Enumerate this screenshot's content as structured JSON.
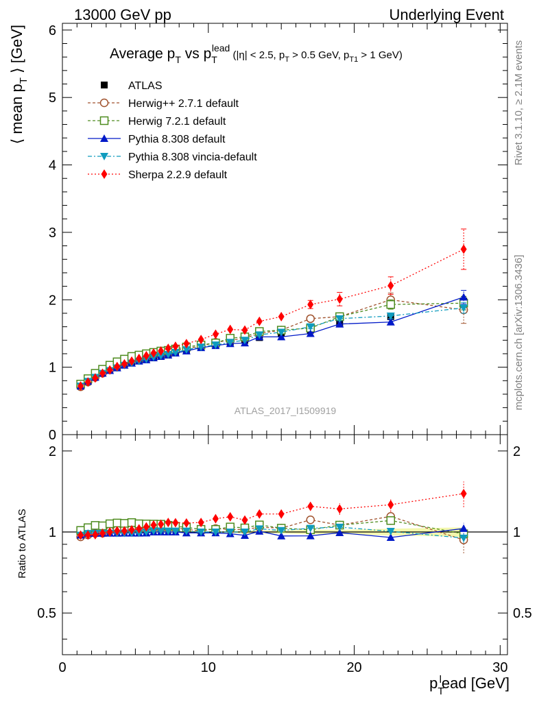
{
  "header": {
    "left": "13000 GeV pp",
    "right": "Underlying Event"
  },
  "side_labels": {
    "rivet": "Rivet 3.1.10, ≥ 2.1M events",
    "mcplots": "mcplots.cern.ch [arXiv:1306.3436]"
  },
  "watermark": "ATLAS_2017_I1509919",
  "chart_data": {
    "type": "line",
    "title_parts": {
      "main1": "Average p",
      "sub1": "T",
      "main2": " vs p",
      "sub2": "T",
      "sup2": "lead",
      "cond1": " (|η| < 2.5, p",
      "cond_sub1": "T",
      "cond2": " > 0.5 GeV, p",
      "cond_sub2": "T1",
      "cond3": " > 1 GeV)"
    },
    "ylabel_parts": {
      "a": "⟨ mean p",
      "sub": "T",
      "b": " ⟩ [GeV]"
    },
    "xlabel_parts": {
      "a": "p",
      "sub": "T",
      "sup": "l",
      "b": "ead [GeV]"
    },
    "ratio_ylabel": "Ratio to ATLAS",
    "xlim": [
      0,
      30.5
    ],
    "ylim": [
      0,
      6.1
    ],
    "ratio_ylim": [
      0.35,
      2.3
    ],
    "x_ticks": [
      "0",
      "10",
      "20",
      "30"
    ],
    "y_ticks": [
      "0",
      "1",
      "2",
      "3",
      "4",
      "5",
      "6"
    ],
    "ratio_ticks": [
      "0.5",
      "1",
      "2"
    ],
    "x": [
      1.25,
      1.75,
      2.25,
      2.75,
      3.25,
      3.75,
      4.25,
      4.75,
      5.25,
      5.75,
      6.25,
      6.75,
      7.25,
      7.75,
      8.5,
      9.5,
      10.5,
      11.5,
      12.5,
      13.5,
      15.0,
      17.0,
      19.0,
      22.5,
      27.5
    ],
    "data": {
      "name": "ATLAS",
      "values": [
        0.74,
        0.8,
        0.86,
        0.92,
        0.96,
        1.0,
        1.04,
        1.07,
        1.1,
        1.12,
        1.14,
        1.16,
        1.18,
        1.21,
        1.25,
        1.3,
        1.33,
        1.37,
        1.4,
        1.44,
        1.5,
        1.55,
        1.65,
        1.75,
        1.98
      ],
      "errors": [
        0.01,
        0.01,
        0.01,
        0.01,
        0.01,
        0.01,
        0.01,
        0.01,
        0.01,
        0.01,
        0.01,
        0.01,
        0.01,
        0.01,
        0.01,
        0.01,
        0.01,
        0.01,
        0.02,
        0.02,
        0.02,
        0.03,
        0.03,
        0.05,
        0.08
      ]
    },
    "series": [
      {
        "name": "Herwig++ 2.7.1 default",
        "color": "#a0522d",
        "dash": "4,3",
        "marker": "open-circle",
        "values": [
          0.71,
          0.78,
          0.85,
          0.91,
          0.97,
          1.02,
          1.07,
          1.1,
          1.13,
          1.16,
          1.18,
          1.2,
          1.22,
          1.25,
          1.28,
          1.31,
          1.37,
          1.4,
          1.43,
          1.5,
          1.55,
          1.72,
          1.75,
          2.0,
          1.85
        ],
        "errors": [
          0,
          0,
          0,
          0,
          0,
          0,
          0,
          0,
          0,
          0,
          0,
          0,
          0,
          0,
          0,
          0,
          0,
          0,
          0,
          0,
          0,
          0.04,
          0.05,
          0.1,
          0.2
        ]
      },
      {
        "name": "Herwig 7.2.1 default",
        "color": "#4d8b1e",
        "dash": "4,3",
        "marker": "open-square",
        "values": [
          0.75,
          0.83,
          0.91,
          0.97,
          1.03,
          1.08,
          1.12,
          1.16,
          1.18,
          1.2,
          1.22,
          1.24,
          1.25,
          1.27,
          1.3,
          1.33,
          1.36,
          1.43,
          1.45,
          1.53,
          1.55,
          1.58,
          1.75,
          1.93,
          1.95
        ],
        "errors": [
          0,
          0,
          0,
          0,
          0,
          0,
          0,
          0,
          0,
          0,
          0,
          0,
          0,
          0,
          0,
          0,
          0,
          0,
          0,
          0,
          0,
          0.03,
          0.04,
          0.07,
          0.1
        ]
      },
      {
        "name": "Pythia 8.308 default",
        "color": "#0019c8",
        "dash": "",
        "marker": "filled-triangle-up",
        "values": [
          0.72,
          0.79,
          0.85,
          0.91,
          0.95,
          0.99,
          1.03,
          1.06,
          1.09,
          1.11,
          1.14,
          1.16,
          1.18,
          1.21,
          1.24,
          1.29,
          1.32,
          1.35,
          1.36,
          1.45,
          1.45,
          1.5,
          1.64,
          1.67,
          2.04
        ],
        "errors": [
          0,
          0,
          0,
          0,
          0,
          0,
          0,
          0,
          0,
          0,
          0,
          0,
          0,
          0,
          0,
          0,
          0,
          0,
          0,
          0,
          0,
          0.02,
          0.03,
          0.04,
          0.1
        ]
      },
      {
        "name": "Pythia 8.308 vincia-default",
        "color": "#0f9bbe",
        "dash": "6,3,2,3",
        "marker": "filled-triangle-down",
        "values": [
          0.72,
          0.79,
          0.85,
          0.91,
          0.95,
          0.99,
          1.03,
          1.06,
          1.09,
          1.12,
          1.15,
          1.17,
          1.19,
          1.22,
          1.26,
          1.3,
          1.33,
          1.37,
          1.4,
          1.48,
          1.52,
          1.6,
          1.72,
          1.76,
          1.88
        ],
        "errors": [
          0,
          0,
          0,
          0,
          0,
          0,
          0,
          0,
          0,
          0,
          0,
          0,
          0,
          0,
          0,
          0,
          0,
          0,
          0,
          0,
          0,
          0.03,
          0.03,
          0.04,
          0.08
        ]
      },
      {
        "name": "Sherpa 2.2.9 default",
        "color": "#ff0000",
        "dash": "2,3",
        "marker": "filled-diamond",
        "values": [
          0.72,
          0.78,
          0.84,
          0.91,
          0.96,
          1.01,
          1.05,
          1.09,
          1.13,
          1.17,
          1.21,
          1.24,
          1.28,
          1.31,
          1.35,
          1.41,
          1.49,
          1.56,
          1.55,
          1.68,
          1.75,
          1.93,
          2.01,
          2.21,
          2.75
        ],
        "errors": [
          0,
          0,
          0,
          0,
          0,
          0,
          0,
          0,
          0,
          0,
          0,
          0,
          0,
          0,
          0,
          0,
          0,
          0,
          0,
          0,
          0,
          0.06,
          0.1,
          0.13,
          0.3
        ]
      }
    ],
    "legend_position": "top-left",
    "grid": false
  }
}
